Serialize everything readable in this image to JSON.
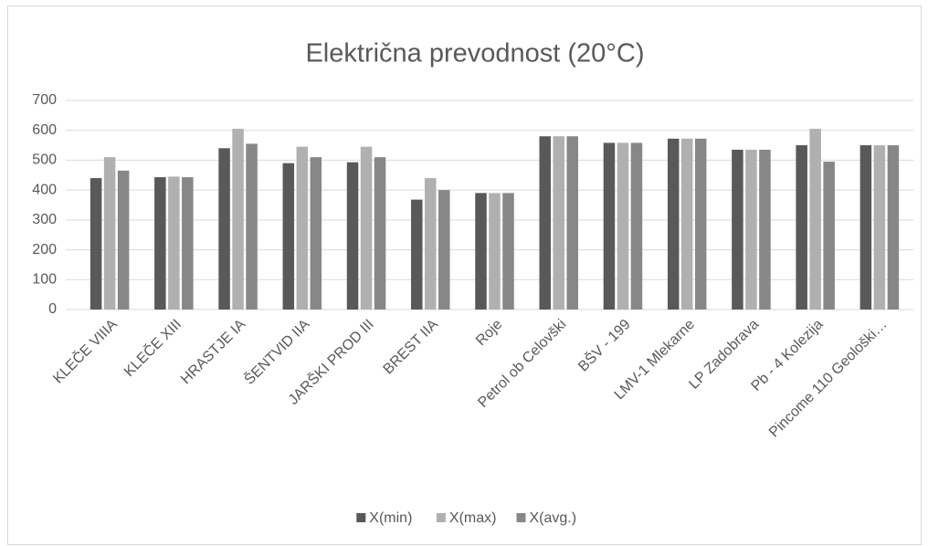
{
  "chart_data": {
    "type": "bar",
    "title": "Električna prevodnost (20°C)",
    "categories": [
      "KLEČE VIIIA",
      "KLEČE XIII",
      "HRASTJE IA",
      "ŠENTVID IIA",
      "JARŠKI PROD III",
      "BREST IIA",
      "Roje",
      "Petrol ob Celovški",
      "BŠV - 199",
      "LMV-1 Mlekarne",
      "LP Zadobrava",
      "Pb - 4 Kolezija",
      "Pincome 110 Geološki…"
    ],
    "series": [
      {
        "name": "X(min)",
        "color": "#595959",
        "values": [
          440,
          443,
          540,
          490,
          493,
          368,
          390,
          580,
          558,
          572,
          535,
          550,
          550
        ]
      },
      {
        "name": "X(max)",
        "color": "#b0b0b0",
        "values": [
          510,
          445,
          605,
          545,
          545,
          440,
          390,
          580,
          558,
          572,
          535,
          605,
          550
        ]
      },
      {
        "name": "X(avg.)",
        "color": "#878787",
        "values": [
          465,
          443,
          555,
          510,
          510,
          400,
          390,
          580,
          558,
          572,
          535,
          495,
          550
        ]
      }
    ],
    "ylim": [
      0,
      700
    ],
    "yticks": [
      0,
      100,
      200,
      300,
      400,
      500,
      600,
      700
    ],
    "grid": true,
    "legend": "bottom"
  }
}
